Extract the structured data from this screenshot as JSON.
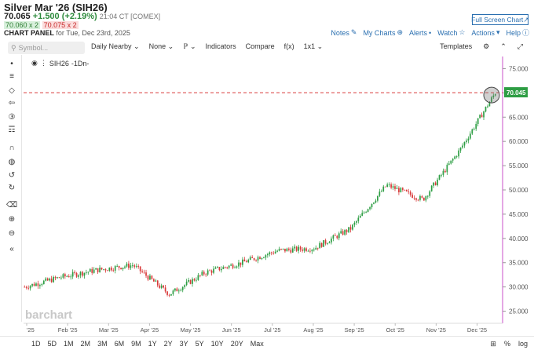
{
  "header": {
    "title": "Silver Mar '26 (SIH26)",
    "price": "70.065",
    "change": "+1.500 (+2.19%)",
    "timestamp": "21:04 CT [COMEX]",
    "bid": "70.060 x 2",
    "ask": "70.075 x 2",
    "panel_label": "CHART PANEL",
    "panel_date": "for Tue, Dec 23rd, 2025",
    "fullscreen_label": "Full Screen Chart",
    "notes_label": "Notes",
    "mycharts_label": "My Charts",
    "alerts_label": "Alerts",
    "watch_label": "Watch",
    "actions_label": "Actions",
    "help_label": "Help"
  },
  "toolbar": {
    "symbol_placeholder": "Symbol...",
    "period": "Daily Nearby",
    "study": "None",
    "indicators": "Indicators",
    "compare": "Compare",
    "fx": "f(x)",
    "layout": "1x1",
    "templates": "Templates"
  },
  "legend": {
    "symbol": "SIH26",
    "suffix": "-1Dn-"
  },
  "bottom": {
    "ranges": [
      "1D",
      "5D",
      "1M",
      "2M",
      "3M",
      "6M",
      "9M",
      "1Y",
      "2Y",
      "3Y",
      "5Y",
      "10Y",
      "20Y",
      "Max"
    ],
    "pct": "%",
    "log": "log"
  },
  "watermark": "barchart",
  "colors": {
    "up": "#2e9e44",
    "down": "#d93a3a",
    "accent": "#2a6fb0",
    "last": "#2e9e44"
  },
  "chart_data": {
    "type": "candlestick",
    "title": "",
    "xlabel": "",
    "ylabel": "",
    "ylim": [
      22.5,
      77.5
    ],
    "y_ticks": [
      "25.000",
      "30.000",
      "35.000",
      "40.000",
      "45.000",
      "50.000",
      "55.000",
      "60.000",
      "65.000",
      "70.000",
      "75.000"
    ],
    "x_ticks": [
      "'25",
      "Feb '25",
      "Mar '25",
      "Apr '25",
      "May '25",
      "Jun '25",
      "Jul '25",
      "Aug '25",
      "Sep '25",
      "Oct '25",
      "Nov '25",
      "Dec '25"
    ],
    "last_price": "70.045",
    "last_value": 70.045,
    "series": [
      {
        "date": "Jan '25",
        "close": 30.0
      },
      {
        "date": "Feb '25",
        "close": 32.0
      },
      {
        "date": "Mar '25",
        "close": 33.5
      },
      {
        "date": "Apr '25",
        "close": 34.5
      },
      {
        "date": "Apr '25",
        "close": 28.5
      },
      {
        "date": "May '25",
        "close": 33.0
      },
      {
        "date": "Jun '25",
        "close": 35.0
      },
      {
        "date": "Jul '25",
        "close": 37.5
      },
      {
        "date": "Aug '25",
        "close": 38.0
      },
      {
        "date": "Sep '25",
        "close": 42.0
      },
      {
        "date": "Oct '25",
        "close": 51.0
      },
      {
        "date": "Nov '25",
        "close": 48.0
      },
      {
        "date": "Dec '25",
        "close": 58.0
      },
      {
        "date": "Dec '25",
        "close": 70.045
      }
    ]
  }
}
